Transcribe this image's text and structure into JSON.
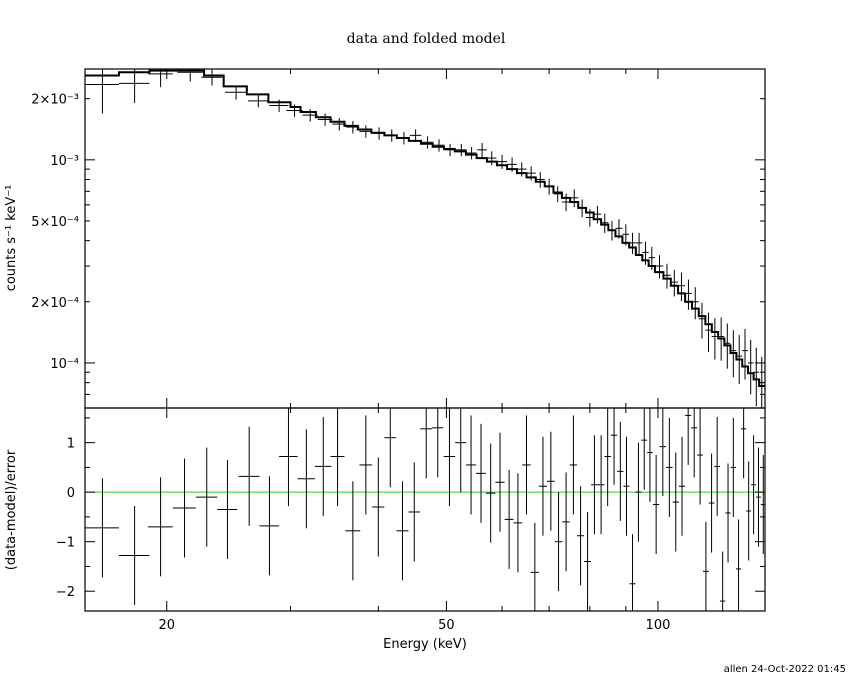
{
  "chart_data": [
    {
      "panel": "top",
      "type": "line",
      "title": "data and folded model",
      "ylabel": "counts s⁻¹ keV⁻¹",
      "xlabel": "",
      "xscale": "log",
      "yscale": "log",
      "xlim": [
        15.3,
        142
      ],
      "ylim": [
        6e-05,
        0.0028
      ],
      "ytick_labels": [
        {
          "value": 0.002,
          "label": "2×10⁻³"
        },
        {
          "value": 0.001,
          "label": "10⁻³"
        },
        {
          "value": 0.0005,
          "label": "5×10⁻⁴"
        },
        {
          "value": 0.0002,
          "label": "2×10⁻⁴"
        },
        {
          "value": 0.0001,
          "label": "10⁻⁴"
        }
      ],
      "series": [
        {
          "kind": "data-crosses",
          "x": [
            16.2,
            18.0,
            19.6,
            21.6,
            23.2,
            25.1,
            27.0,
            28.9,
            30.4,
            32.0,
            33.6,
            35.2,
            36.8,
            38.4,
            40.1,
            41.8,
            43.5,
            45.2,
            47.0,
            48.8,
            50.6,
            52.5,
            54.3,
            56.2,
            58.0,
            60.0,
            62.0,
            64.0,
            66.0,
            68.0,
            70.0,
            72.0,
            74.0,
            76.0,
            78.0,
            80.0,
            82.0,
            84.0,
            86.0,
            88.0,
            90.0,
            92.0,
            94.0,
            96.0,
            98.0,
            100.5,
            103,
            105.5,
            108,
            110.5,
            113,
            115.5,
            118,
            120.5,
            123,
            125.5,
            128,
            130.5,
            133,
            135.5,
            138,
            140.5
          ],
          "y": [
            0.00235,
            0.00238,
            0.00265,
            0.0027,
            0.00255,
            0.00215,
            0.00195,
            0.00185,
            0.00175,
            0.00166,
            0.00158,
            0.0015,
            0.00145,
            0.00138,
            0.00135,
            0.00132,
            0.00128,
            0.00132,
            0.00122,
            0.00118,
            0.00112,
            0.00112,
            0.00108,
            0.00112,
            0.00102,
            0.00098,
            0.00095,
            0.0009,
            0.00086,
            0.0008,
            0.00074,
            0.00068,
            0.00062,
            0.00065,
            0.00058,
            0.00052,
            0.00054,
            0.00049,
            0.00045,
            0.00046,
            0.00043,
            0.00039,
            0.00039,
            0.00035,
            0.00033,
            0.0003,
            0.00027,
            0.00025,
            0.00024,
            0.00022,
            0.0002,
            0.000165,
            0.000145,
            0.000135,
            0.000135,
            0.000125,
            0.000115,
            0.000108,
            0.000115,
            0.0001,
            9e-05,
            8e-05
          ],
          "xerr": [
            0.9,
            0.9,
            0.8,
            0.9,
            0.8,
            0.9,
            0.9,
            0.9,
            0.8,
            0.8,
            0.8,
            0.8,
            0.8,
            0.8,
            0.85,
            0.85,
            0.85,
            0.85,
            0.9,
            0.9,
            0.9,
            0.9,
            0.9,
            0.9,
            0.9,
            1.0,
            1.0,
            1.0,
            1.0,
            1.0,
            1.0,
            1.0,
            1.0,
            1.0,
            1.0,
            1.0,
            1.0,
            1.0,
            1.0,
            1.0,
            1.0,
            1.0,
            1.0,
            1.0,
            1.0,
            1.25,
            1.25,
            1.25,
            1.25,
            1.25,
            1.25,
            1.25,
            1.25,
            1.25,
            1.25,
            1.25,
            1.25,
            1.25,
            1.25,
            1.25,
            1.25,
            1.25
          ],
          "yerr_frac": [
            0.28,
            0.2,
            0.14,
            0.1,
            0.09,
            0.08,
            0.07,
            0.07,
            0.07,
            0.07,
            0.07,
            0.07,
            0.07,
            0.07,
            0.07,
            0.07,
            0.07,
            0.07,
            0.07,
            0.07,
            0.07,
            0.07,
            0.07,
            0.08,
            0.08,
            0.08,
            0.08,
            0.08,
            0.08,
            0.09,
            0.09,
            0.09,
            0.1,
            0.1,
            0.1,
            0.1,
            0.1,
            0.11,
            0.11,
            0.11,
            0.12,
            0.12,
            0.12,
            0.13,
            0.13,
            0.13,
            0.14,
            0.15,
            0.16,
            0.17,
            0.18,
            0.2,
            0.22,
            0.23,
            0.24,
            0.25,
            0.26,
            0.27,
            0.28,
            0.3,
            0.32,
            0.34
          ]
        },
        {
          "kind": "model-step",
          "x_edges": [
            15.3,
            17.1,
            18.9,
            20.5,
            22.6,
            24.1,
            26.0,
            27.9,
            30.0,
            31.0,
            32.6,
            34.2,
            35.8,
            37.4,
            39.1,
            40.8,
            42.5,
            44.2,
            46.0,
            47.8,
            49.6,
            51.4,
            53.3,
            55.2,
            57.1,
            59.0,
            61.0,
            63.0,
            65.0,
            67.0,
            69.0,
            71.0,
            73.0,
            75.0,
            77.0,
            79.0,
            81.0,
            83.0,
            85.0,
            87.0,
            89.0,
            91.0,
            93.0,
            95.0,
            97.0,
            99.0,
            101.8,
            104.3,
            106.8,
            109.3,
            111.8,
            114.3,
            116.8,
            119.3,
            121.8,
            124.3,
            126.8,
            129.3,
            131.8,
            134.3,
            136.8,
            139.3,
            142
          ],
          "y": [
            0.0026,
            0.0027,
            0.00275,
            0.00275,
            0.0026,
            0.0023,
            0.0021,
            0.00192,
            0.00182,
            0.00172,
            0.00162,
            0.00154,
            0.00147,
            0.00141,
            0.00136,
            0.00132,
            0.00128,
            0.00124,
            0.0012,
            0.00116,
            0.00113,
            0.0011,
            0.00106,
            0.00102,
            0.00098,
            0.00094,
            0.0009,
            0.00086,
            0.00082,
            0.00078,
            0.00074,
            0.00069,
            0.00065,
            0.00062,
            0.00058,
            0.00055,
            0.00051,
            0.00048,
            0.00045,
            0.00042,
            0.00039,
            0.00037,
            0.00034,
            0.00032,
            0.0003,
            0.00028,
            0.00026,
            0.00024,
            0.00022,
            0.0002,
            0.000185,
            0.00017,
            0.000155,
            0.000142,
            0.000132,
            0.000122,
            0.000112,
            0.000104,
            9.6e-05,
            8.9e-05,
            8.3e-05,
            7.7e-05
          ]
        }
      ]
    },
    {
      "panel": "bottom",
      "type": "scatter",
      "title": "",
      "xlabel": "Energy (keV)",
      "ylabel": "(data-model)/error",
      "xscale": "log",
      "xlim": [
        15.3,
        142
      ],
      "ylim": [
        -2.4,
        1.7
      ],
      "xtick_labels": [
        {
          "value": 20,
          "label": "20"
        },
        {
          "value": 50,
          "label": "50"
        },
        {
          "value": 100,
          "label": "100"
        }
      ],
      "ytick_labels": [
        {
          "value": 1,
          "label": "1"
        },
        {
          "value": 0,
          "label": "0"
        },
        {
          "value": -1,
          "label": "−1"
        },
        {
          "value": -2,
          "label": "−2"
        }
      ],
      "zero_line_color": "#22cc22",
      "series": [
        {
          "kind": "residual-crosses",
          "x": [
            16.2,
            18.0,
            19.6,
            21.2,
            22.8,
            24.4,
            26.2,
            28.0,
            29.8,
            31.6,
            33.4,
            35.0,
            36.8,
            38.4,
            40.0,
            41.6,
            43.3,
            45.0,
            46.8,
            48.6,
            50.5,
            52.4,
            54.2,
            56.0,
            57.8,
            59.6,
            61.4,
            63.2,
            65.0,
            66.8,
            68.6,
            70.4,
            72.2,
            74.0,
            75.8,
            77.6,
            79.4,
            81.2,
            83.0,
            84.8,
            86.6,
            88.4,
            90.2,
            92.0,
            93.8,
            95.6,
            97.4,
            99.4,
            101.6,
            103.8,
            106.0,
            108.2,
            110.4,
            112.6,
            114.8,
            117.0,
            119.2,
            121.4,
            123.6,
            125.8,
            128.0,
            130.2,
            132.4,
            134.6,
            136.8,
            139.0,
            141.2
          ],
          "y": [
            -0.72,
            -1.28,
            -0.7,
            -0.32,
            -0.1,
            -0.35,
            0.32,
            -0.68,
            0.72,
            0.27,
            0.52,
            0.72,
            -0.78,
            0.55,
            -0.3,
            1.1,
            -0.78,
            -0.4,
            1.28,
            1.3,
            0.72,
            1.0,
            0.55,
            0.38,
            -0.02,
            0.2,
            -0.55,
            -0.62,
            0.55,
            -1.62,
            0.12,
            0.22,
            -1.0,
            -0.6,
            0.55,
            -0.88,
            -1.4,
            0.15,
            0.15,
            0.72,
            1.15,
            0.42,
            0.12,
            -1.85,
            0.0,
            1.05,
            0.8,
            -0.25,
            0.92,
            0.5,
            -0.2,
            0.12,
            1.55,
            1.3,
            0.75,
            -1.6,
            -0.22,
            0.52,
            -2.2,
            -0.42,
            0.5,
            -1.55,
            1.28,
            -0.38,
            0.15,
            -0.1,
            -0.25
          ],
          "xerr": [
            0.9,
            0.9,
            0.8,
            0.8,
            0.8,
            0.8,
            0.9,
            0.9,
            0.9,
            0.9,
            0.9,
            0.8,
            0.9,
            0.8,
            0.8,
            0.8,
            0.85,
            0.85,
            0.9,
            0.9,
            0.95,
            0.95,
            0.9,
            0.9,
            0.9,
            0.9,
            0.9,
            0.9,
            0.9,
            0.9,
            0.9,
            0.9,
            0.9,
            0.9,
            0.9,
            0.9,
            0.9,
            0.9,
            0.9,
            0.9,
            0.9,
            0.9,
            0.9,
            0.9,
            0.9,
            0.9,
            0.9,
            1.0,
            1.1,
            1.1,
            1.1,
            1.1,
            1.1,
            1.1,
            1.1,
            1.1,
            1.1,
            1.1,
            1.1,
            1.1,
            1.1,
            1.1,
            1.1,
            1.1,
            1.1,
            1.1,
            1.1
          ],
          "yerr": [
            1.0,
            1.0,
            1.0,
            1.0,
            1.0,
            1.0,
            1.0,
            1.0,
            1.0,
            1.0,
            1.0,
            1.0,
            1.0,
            1.0,
            1.0,
            1.0,
            1.0,
            1.0,
            1.0,
            1.0,
            1.0,
            1.0,
            1.0,
            1.0,
            1.0,
            1.0,
            1.0,
            1.0,
            1.0,
            1.0,
            1.0,
            1.0,
            1.0,
            1.0,
            1.0,
            1.0,
            1.0,
            1.0,
            1.0,
            1.0,
            1.0,
            1.0,
            1.0,
            1.0,
            1.0,
            1.0,
            1.0,
            1.0,
            1.0,
            1.0,
            1.0,
            1.0,
            1.0,
            1.0,
            1.0,
            1.0,
            1.0,
            1.0,
            1.0,
            1.0,
            1.0,
            1.0,
            1.0,
            1.0,
            1.0,
            1.0,
            1.0
          ]
        }
      ]
    }
  ],
  "footer": "allen 24-Oct-2022 01:45"
}
